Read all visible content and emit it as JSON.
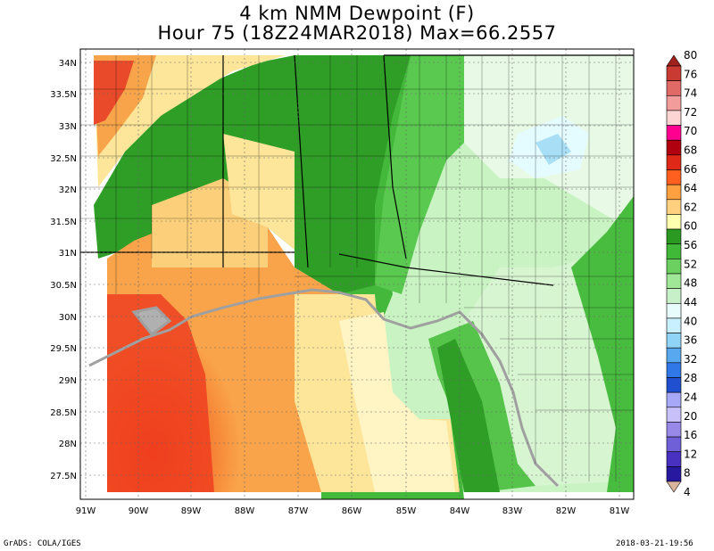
{
  "title": {
    "line1": "4 km NMM Dewpoint (F)",
    "line2": "Hour 75 (18Z24MAR2018) Max=66.2557"
  },
  "axes": {
    "lat_labels": [
      "34N",
      "33.5N",
      "33N",
      "32.5N",
      "32N",
      "31.5N",
      "31N",
      "30.5N",
      "30N",
      "29.5N",
      "29N",
      "28.5N",
      "28N",
      "27.5N"
    ],
    "lon_labels": [
      "91W",
      "90W",
      "89W",
      "88W",
      "87W",
      "86W",
      "85W",
      "84W",
      "83W",
      "82W",
      "81W"
    ]
  },
  "colorbar": {
    "labels": [
      "80",
      "76",
      "74",
      "72",
      "70",
      "68",
      "66",
      "64",
      "62",
      "60",
      "56",
      "52",
      "48",
      "44",
      "40",
      "36",
      "32",
      "28",
      "24",
      "20",
      "16",
      "12",
      "8",
      "4"
    ],
    "colors": [
      "#a0201e",
      "#c83a32",
      "#e06a66",
      "#f29c9c",
      "#fcd4d4",
      "#ff0090",
      "#b00010",
      "#e02818",
      "#ff6020",
      "#ffa040",
      "#ffd080",
      "#ffffb0",
      "#2a9a22",
      "#40b838",
      "#6cd060",
      "#a0e898",
      "#c8f0c8",
      "#e8fcfc",
      "#c8f0ff",
      "#90d4f8",
      "#58a8f0",
      "#3078e8",
      "#2050d0",
      "#a8a8f8",
      "#c8c0f8",
      "#9888e8",
      "#7060d8",
      "#4830c0",
      "#2818a0",
      "#d8b49c"
    ]
  },
  "footer": {
    "left": "GrADS: COLA/IGES",
    "right": "2018-03-21-19:56"
  }
}
